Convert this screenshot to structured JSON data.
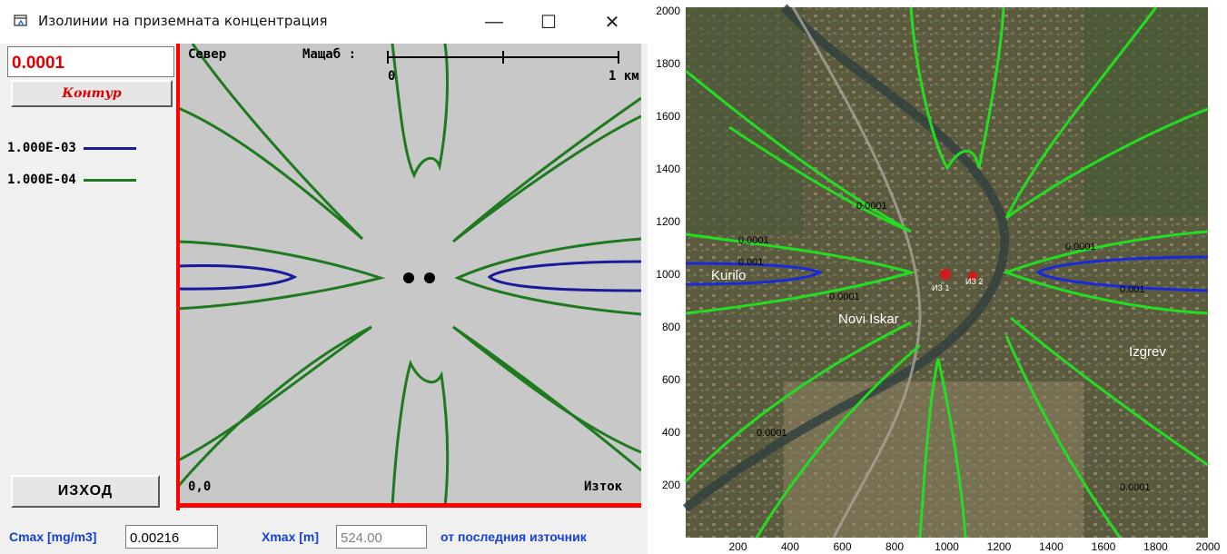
{
  "window": {
    "title": "Изолинии на приземната концентрация",
    "minimize": "—",
    "maximize": "☐",
    "close": "✕"
  },
  "controls": {
    "contour_value": "0.0001",
    "contour_button": "Контур",
    "exit_button": "ИЗХОД"
  },
  "legend": [
    {
      "label": "1.000E-03",
      "color": "#1a1a9a"
    },
    {
      "label": "1.000E-04",
      "color": "#1f7a1f"
    }
  ],
  "plot": {
    "north": "Север",
    "scale_label": "Мащаб :",
    "scale_start": "0",
    "scale_end": "1 км",
    "origin": "0,0",
    "east": "Изток"
  },
  "bottom": {
    "cmax_label": "Cmax [mg/m3]",
    "cmax_value": "0.00216",
    "xmax_label": "Xmax [m]",
    "xmax_value": "524.00",
    "source_note": "от последния източник"
  },
  "map": {
    "x_ticks": [
      "200",
      "400",
      "600",
      "800",
      "1000",
      "1200",
      "1400",
      "1600",
      "1800",
      "2000"
    ],
    "y_ticks": [
      "200",
      "400",
      "600",
      "800",
      "1000",
      "1200",
      "1400",
      "1600",
      "1800",
      "2000"
    ],
    "places": [
      "Kurilo",
      "Novi Iskar",
      "Izgrev"
    ],
    "sources": [
      "ИЗ 1",
      "ИЗ 2"
    ],
    "contour_label": "0.0001",
    "contour_label_high": "0.001",
    "colors": {
      "low": "#22dd22",
      "high": "#1a2ad8",
      "source": "#d21a1a"
    }
  }
}
